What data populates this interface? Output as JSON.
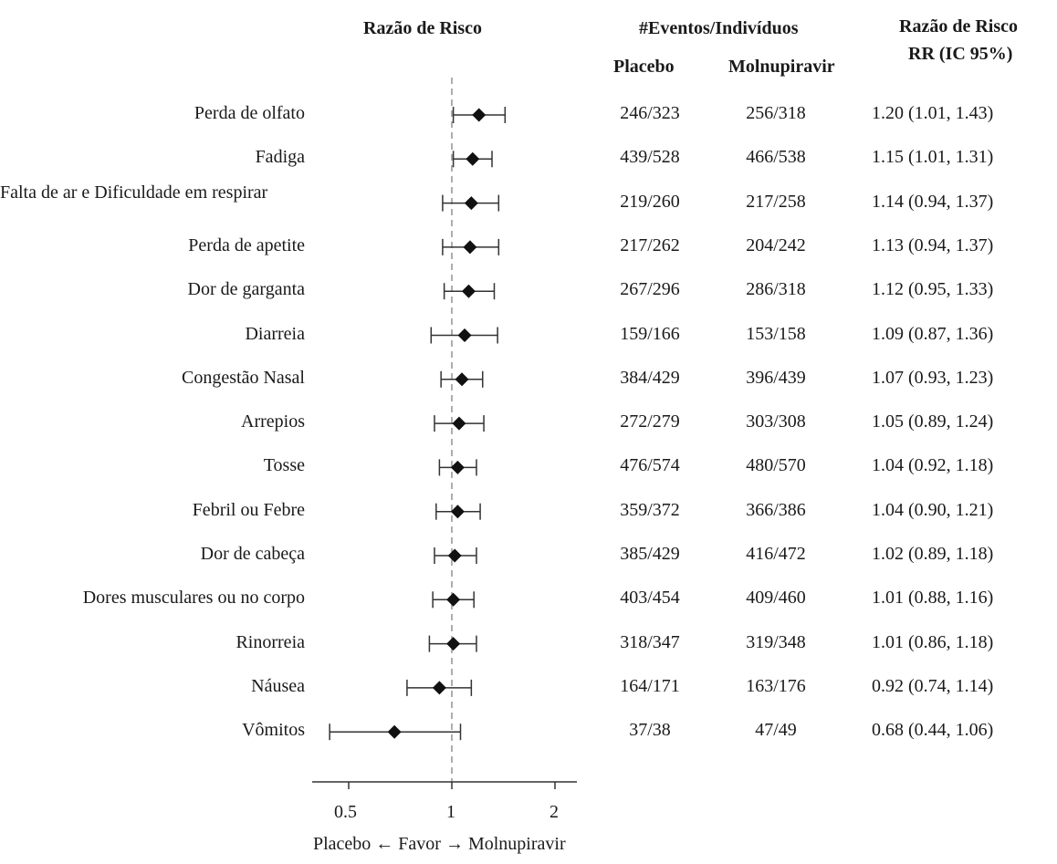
{
  "headers": {
    "plot": "Razão de Risco",
    "events": "#Eventos/Indivíduos",
    "placebo": "Placebo",
    "molnupiravir": "Molnupiravir",
    "rr_line1": "Razão de Risco",
    "rr_line2": "RR (IC 95%)"
  },
  "rows": [
    {
      "label": "Perda de olfato",
      "placebo": "246/323",
      "molnupiravir": "256/318",
      "rr_text": "1.20 (1.01, 1.43)"
    },
    {
      "label": "Fadiga",
      "placebo": "439/528",
      "molnupiravir": "466/538",
      "rr_text": "1.15 (1.01, 1.31)"
    },
    {
      "label": "Falta de ar e Dificuldade em respirar",
      "placebo": "219/260",
      "molnupiravir": "217/258",
      "rr_text": "1.14 (0.94, 1.37)"
    },
    {
      "label": "Perda de apetite",
      "placebo": "217/262",
      "molnupiravir": "204/242",
      "rr_text": "1.13 (0.94, 1.37)"
    },
    {
      "label": "Dor de garganta",
      "placebo": "267/296",
      "molnupiravir": "286/318",
      "rr_text": "1.12 (0.95, 1.33)"
    },
    {
      "label": "Diarreia",
      "placebo": "159/166",
      "molnupiravir": "153/158",
      "rr_text": "1.09 (0.87, 1.36)"
    },
    {
      "label": "Congestão Nasal",
      "placebo": "384/429",
      "molnupiravir": "396/439",
      "rr_text": "1.07 (0.93, 1.23)"
    },
    {
      "label": "Arrepios",
      "placebo": "272/279",
      "molnupiravir": "303/308",
      "rr_text": "1.05 (0.89, 1.24)"
    },
    {
      "label": "Tosse",
      "placebo": "476/574",
      "molnupiravir": "480/570",
      "rr_text": "1.04 (0.92, 1.18)"
    },
    {
      "label": "Febril ou Febre",
      "placebo": "359/372",
      "molnupiravir": "366/386",
      "rr_text": "1.04 (0.90, 1.21)"
    },
    {
      "label": "Dor de cabeça",
      "placebo": "385/429",
      "molnupiravir": "416/472",
      "rr_text": "1.02 (0.89, 1.18)"
    },
    {
      "label": "Dores musculares ou no corpo",
      "placebo": "403/454",
      "molnupiravir": "409/460",
      "rr_text": "1.01 (0.88, 1.16)"
    },
    {
      "label": "Rinorreia",
      "placebo": "318/347",
      "molnupiravir": "319/348",
      "rr_text": "1.01 (0.86, 1.18)"
    },
    {
      "label": "Náusea",
      "placebo": "164/171",
      "molnupiravir": "163/176",
      "rr_text": "0.92 (0.74, 1.14)"
    },
    {
      "label": "Vômitos",
      "placebo": "37/38",
      "molnupiravir": "47/49",
      "rr_text": "0.68 (0.44, 1.06)"
    }
  ],
  "chart_data": {
    "type": "forest",
    "scale": "log",
    "reference": 1,
    "xticks": [
      "0.5",
      "1",
      "2"
    ],
    "xlim": [
      0.35,
      2.4
    ],
    "xlabel": "Placebo ← Favor → Molnupiravir",
    "categories": [
      "Perda de olfato",
      "Fadiga",
      "Falta de ar e Dificuldade em respirar",
      "Perda de apetite",
      "Dor de garganta",
      "Diarreia",
      "Congestão Nasal",
      "Arrepios",
      "Tosse",
      "Febril ou Febre",
      "Dor de cabeça",
      "Dores musculares ou no corpo",
      "Rinorreia",
      "Náusea",
      "Vômitos"
    ],
    "estimates": [
      1.2,
      1.15,
      1.14,
      1.13,
      1.12,
      1.09,
      1.07,
      1.05,
      1.04,
      1.04,
      1.02,
      1.01,
      1.01,
      0.92,
      0.68
    ],
    "ci_low": [
      1.01,
      1.01,
      0.94,
      0.94,
      0.95,
      0.87,
      0.93,
      0.89,
      0.92,
      0.9,
      0.89,
      0.88,
      0.86,
      0.74,
      0.44
    ],
    "ci_high": [
      1.43,
      1.31,
      1.37,
      1.37,
      1.33,
      1.36,
      1.23,
      1.24,
      1.18,
      1.21,
      1.18,
      1.16,
      1.18,
      1.14,
      1.06
    ]
  }
}
